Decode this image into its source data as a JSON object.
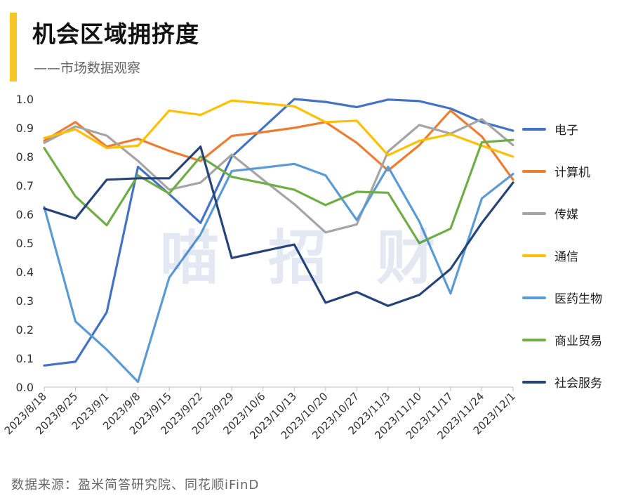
{
  "header": {
    "title": "机会区域拥挤度",
    "subtitle": "——市场数据观察"
  },
  "watermark": "喵招财",
  "footer": {
    "source": "数据来源：盈米简答研究院、同花顺iFinD"
  },
  "chart_data": {
    "type": "line",
    "title": "",
    "xlabel": "",
    "ylabel": "",
    "ylim": [
      0,
      1
    ],
    "yticks": [
      0,
      0.1,
      0.2,
      0.3,
      0.4,
      0.5,
      0.6,
      0.7,
      0.8,
      0.9,
      1.0
    ],
    "ytick_labels": [
      "0.0",
      "0.1",
      "0.2",
      "0.3",
      "0.4",
      "0.5",
      "0.6",
      "0.7",
      "0.8",
      "0.9",
      "1.0"
    ],
    "grid": false,
    "legend_position": "right",
    "x": [
      "2023/8/18",
      "2023/8/25",
      "2023/9/1",
      "2023/9/8",
      "2023/9/15",
      "2023/9/22",
      "2023/9/29",
      "2023/10/6",
      "2023/10/13",
      "2023/10/20",
      "2023/10/27",
      "2023/11/3",
      "2023/11/10",
      "2023/11/17",
      "2023/11/24",
      "2023/12/1"
    ],
    "series": [
      {
        "name": "电子",
        "color": "#4472C4",
        "values": [
          0.075,
          0.088,
          0.26,
          0.765,
          0.67,
          0.57,
          0.8,
          0.9,
          1.0,
          0.99,
          0.972,
          0.998,
          0.993,
          0.967,
          0.92,
          0.89
        ]
      },
      {
        "name": "计算机",
        "color": "#ED7D31",
        "values": [
          0.855,
          0.92,
          0.835,
          0.862,
          0.82,
          0.785,
          0.872,
          0.885,
          0.9,
          0.92,
          0.848,
          0.752,
          0.84,
          0.96,
          0.87,
          0.72
        ]
      },
      {
        "name": "传媒",
        "color": "#A5A5A5",
        "values": [
          0.848,
          0.905,
          0.873,
          0.785,
          0.685,
          0.71,
          0.807,
          0.72,
          0.635,
          0.537,
          0.565,
          0.818,
          0.91,
          0.88,
          0.93,
          0.84
        ]
      },
      {
        "name": "通信",
        "color": "#FFC000",
        "values": [
          0.865,
          0.895,
          0.83,
          0.838,
          0.96,
          0.945,
          0.995,
          0.985,
          0.975,
          0.92,
          0.925,
          0.805,
          0.855,
          0.878,
          0.838,
          0.8
        ]
      },
      {
        "name": "医药生物",
        "color": "#5B9BD5",
        "values": [
          0.625,
          0.228,
          0.13,
          0.018,
          0.38,
          0.53,
          0.75,
          0.762,
          0.775,
          0.735,
          0.58,
          0.765,
          0.575,
          0.325,
          0.655,
          0.74
        ]
      },
      {
        "name": "商业贸易",
        "color": "#70AD47",
        "values": [
          0.83,
          0.662,
          0.562,
          0.735,
          0.672,
          0.8,
          0.73,
          0.708,
          0.685,
          0.632,
          0.678,
          0.675,
          0.5,
          0.55,
          0.85,
          0.858
        ]
      },
      {
        "name": "社会服务",
        "color": "#264478",
        "values": [
          0.62,
          0.585,
          0.72,
          0.725,
          0.725,
          0.835,
          0.448,
          0.472,
          0.495,
          0.293,
          0.33,
          0.282,
          0.32,
          0.41,
          0.57,
          0.71
        ]
      }
    ]
  }
}
